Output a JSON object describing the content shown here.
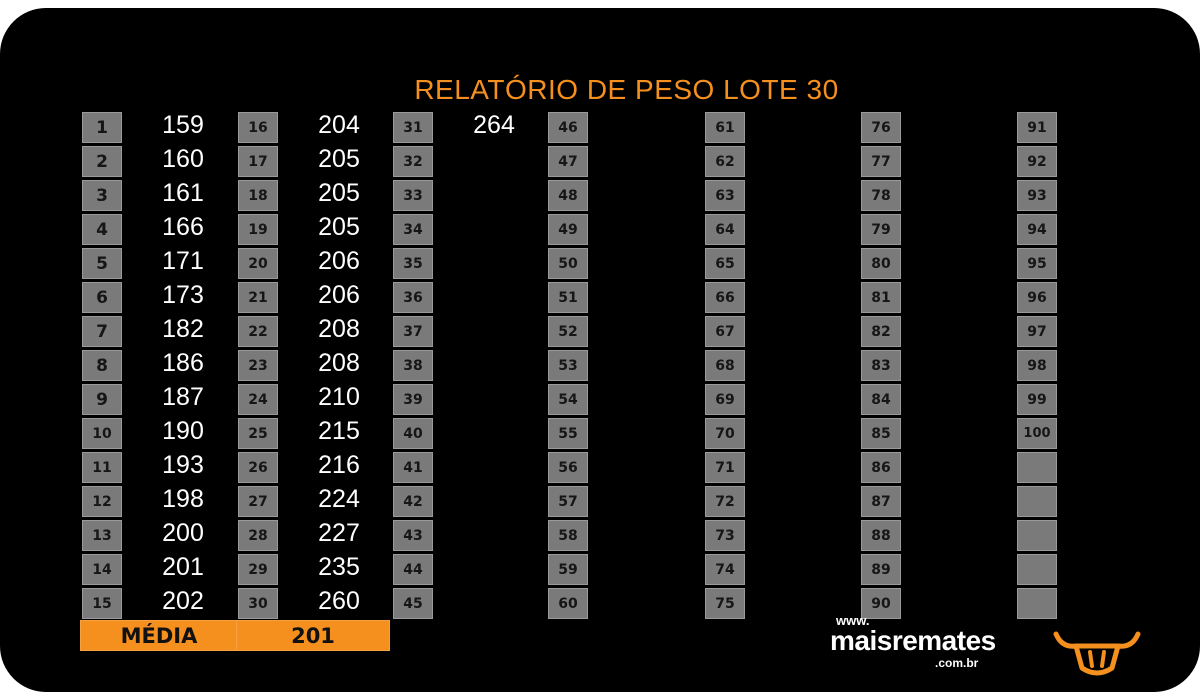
{
  "report": {
    "title": "RELATÓRIO DE PESO LOTE 30",
    "average_label": "MÉDIA",
    "average_value": "201"
  },
  "columns": [
    {
      "start": 1,
      "weights": [
        "159",
        "160",
        "161",
        "166",
        "171",
        "173",
        "182",
        "186",
        "187",
        "190",
        "193",
        "198",
        "200",
        "201",
        "202"
      ]
    },
    {
      "start": 16,
      "weights": [
        "204",
        "205",
        "205",
        "205",
        "206",
        "206",
        "208",
        "208",
        "210",
        "215",
        "216",
        "224",
        "227",
        "235",
        "260"
      ]
    },
    {
      "start": 31,
      "weights": [
        "264",
        "",
        "",
        "",
        "",
        "",
        "",
        "",
        "",
        "",
        "",
        "",
        "",
        "",
        ""
      ]
    },
    {
      "start": 46,
      "weights": []
    },
    {
      "start": 61,
      "weights": []
    },
    {
      "start": 76,
      "weights": []
    },
    {
      "start": 91,
      "weights": []
    }
  ],
  "extra_empty_cells": 5,
  "brand": {
    "www": "www.",
    "name": "maisremates",
    "domain": ".com.br",
    "logo_icon": "bull-head-icon"
  },
  "colors": {
    "accent": "#f5901e",
    "cell": "#7a7a7a",
    "background": "#000000"
  }
}
